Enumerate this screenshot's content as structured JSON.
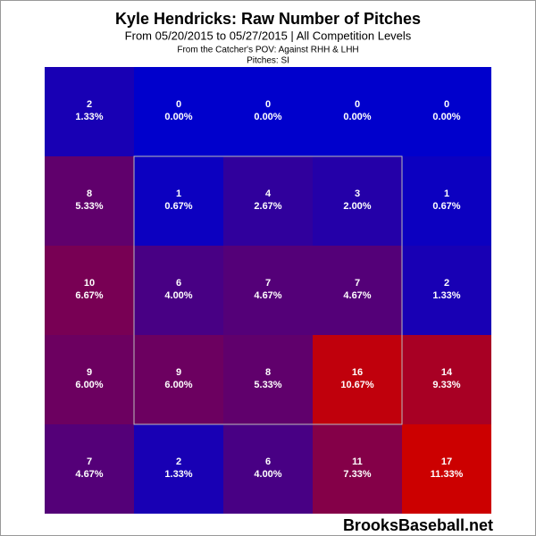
{
  "chart_data": {
    "type": "heatmap",
    "title": "Kyle Hendricks: Raw Number of Pitches",
    "subtitle": "From 05/20/2015 to 05/27/2015 | All Competition Levels",
    "view_note": "From the Catcher's POV:  Against RHH & LHH",
    "pitch_note": "Pitches:  SI",
    "watermark": "BrooksBaseball.net",
    "color_low": "#0000cc",
    "color_high": "#cc0000",
    "counts": [
      [
        2,
        0,
        0,
        0,
        0
      ],
      [
        8,
        1,
        4,
        3,
        1
      ],
      [
        10,
        6,
        7,
        7,
        2
      ],
      [
        9,
        9,
        8,
        16,
        14
      ],
      [
        7,
        2,
        6,
        11,
        17
      ]
    ],
    "percents": [
      [
        1.33,
        0.0,
        0.0,
        0.0,
        0.0
      ],
      [
        5.33,
        0.67,
        2.67,
        2.0,
        0.67
      ],
      [
        6.67,
        4.0,
        4.67,
        4.67,
        1.33
      ],
      [
        6.0,
        6.0,
        5.33,
        10.67,
        9.33
      ],
      [
        4.67,
        1.33,
        4.0,
        7.33,
        11.33
      ]
    ],
    "percent_labels": [
      [
        "1.33%",
        "0.00%",
        "0.00%",
        "0.00%",
        "0.00%"
      ],
      [
        "5.33%",
        "0.67%",
        "2.67%",
        "2.00%",
        "0.67%"
      ],
      [
        "6.67%",
        "4.00%",
        "4.67%",
        "4.67%",
        "1.33%"
      ],
      [
        "6.00%",
        "6.00%",
        "5.33%",
        "10.67%",
        "9.33%"
      ],
      [
        "4.67%",
        "1.33%",
        "4.00%",
        "7.33%",
        "11.33%"
      ]
    ]
  }
}
